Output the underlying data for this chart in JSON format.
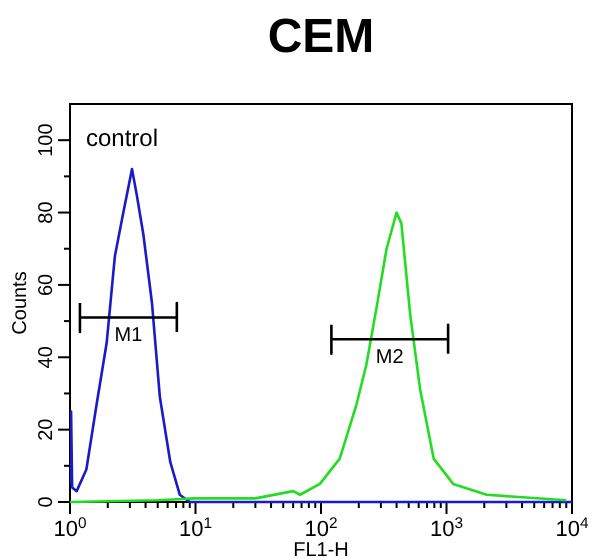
{
  "chart_data": {
    "type": "line",
    "title": "CEM",
    "xlabel": "FL1-H",
    "ylabel": "Counts",
    "log": "x",
    "xlim": [
      1,
      10000
    ],
    "ylim": [
      0,
      110
    ],
    "xticks": [
      {
        "value": 1,
        "label": "10$^{0}$"
      },
      {
        "value": 2,
        "label": null
      },
      {
        "value": 3,
        "label": null
      },
      {
        "value": 4,
        "label": null
      },
      {
        "value": 5,
        "label": null
      },
      {
        "value": 6,
        "label": null
      },
      {
        "value": 7,
        "label": null
      },
      {
        "value": 8,
        "label": null
      },
      {
        "value": 9,
        "label": null
      },
      {
        "value": 10,
        "label": "10$^{1}$"
      },
      {
        "value": 20,
        "label": null
      },
      {
        "value": 30,
        "label": null
      },
      {
        "value": 40,
        "label": null
      },
      {
        "value": 50,
        "label": null
      },
      {
        "value": 60,
        "label": null
      },
      {
        "value": 70,
        "label": null
      },
      {
        "value": 80,
        "label": null
      },
      {
        "value": 90,
        "label": null
      },
      {
        "value": 100,
        "label": "10$^{2}$"
      },
      {
        "value": 200,
        "label": null
      },
      {
        "value": 300,
        "label": null
      },
      {
        "value": 400,
        "label": null
      },
      {
        "value": 500,
        "label": null
      },
      {
        "value": 600,
        "label": null
      },
      {
        "value": 700,
        "label": null
      },
      {
        "value": 800,
        "label": null
      },
      {
        "value": 900,
        "label": null
      },
      {
        "value": 1000,
        "label": "10$^{3}$"
      },
      {
        "value": 2000,
        "label": null
      },
      {
        "value": 3000,
        "label": null
      },
      {
        "value": 4000,
        "label": null
      },
      {
        "value": 5000,
        "label": null
      },
      {
        "value": 6000,
        "label": null
      },
      {
        "value": 7000,
        "label": null
      },
      {
        "value": 8000,
        "label": null
      },
      {
        "value": 9000,
        "label": null
      },
      {
        "value": 10000,
        "label": "10$^{4}$"
      }
    ],
    "yticks": [
      0,
      {
        "value": 10,
        "label": null
      },
      20,
      {
        "value": 30,
        "label": null
      },
      40,
      {
        "value": 50,
        "label": null
      },
      60,
      {
        "value": 70,
        "label": null
      },
      80,
      {
        "value": 90,
        "label": null
      },
      100
    ],
    "series": [
      {
        "color": "#1a1ac8",
        "x": [
          1,
          1.02,
          1.04,
          1.13,
          1.35,
          1.63,
          1.96,
          2.28,
          2.66,
          3.12,
          3.4,
          3.84,
          4.5,
          5.2,
          6.3,
          7.5,
          9,
          20,
          100,
          1000,
          10000
        ],
        "values": [
          5,
          25,
          4,
          3,
          9,
          27,
          44,
          68,
          80,
          92,
          85,
          74,
          55,
          29,
          11,
          2,
          0,
          0,
          0,
          0,
          0
        ]
      },
      {
        "color": "#22dd22",
        "x": [
          1,
          5,
          10,
          30,
          60,
          68,
          98,
          141,
          192,
          230,
          278,
          333,
          400,
          437,
          513,
          617,
          790,
          1130,
          2090,
          9000
        ],
        "values": [
          0,
          0.5,
          1,
          1,
          3,
          2,
          5,
          12,
          27,
          38,
          54,
          70,
          80,
          77,
          52,
          31,
          12,
          5,
          2,
          0.5
        ]
      },
      {
        "type": "line",
        "name": "M1",
        "color": "#000000",
        "x": [
          1.2,
          1.2,
          1.2,
          7.1,
          7.1,
          7.1
        ],
        "values": [
          55,
          47,
          51,
          51,
          55,
          47
        ]
      },
      {
        "type": "line",
        "name": "M2",
        "color": "#000000",
        "x": [
          121,
          121,
          121,
          1030,
          1030,
          1030
        ],
        "values": [
          49,
          41,
          45,
          45,
          49,
          41
        ]
      }
    ],
    "annotations": [
      "control"
    ]
  }
}
